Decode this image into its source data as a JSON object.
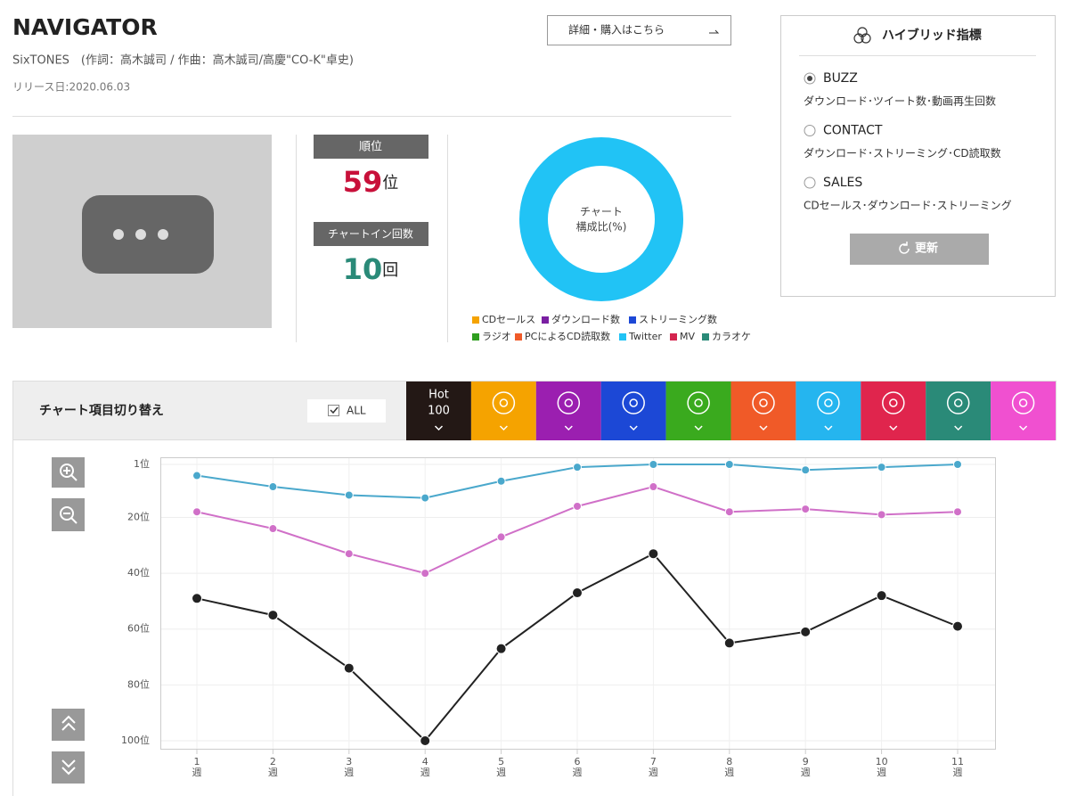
{
  "header": {
    "title": "NAVIGATOR",
    "credits": "SixTONES　(作詞：高木誠司 / 作曲：高木誠司/高慶\"CO-K\"卓史)",
    "release_date": "リリース日:2020.06.03",
    "detail_link": "詳細・購入はこちら"
  },
  "stats": {
    "rank_label": "順位",
    "rank": 59,
    "rank_unit": "位",
    "chart_in_label": "チャートイン回数",
    "chart_in": 10,
    "chart_in_unit": "回"
  },
  "hybrid": {
    "title": "ハイブリッド指標",
    "update_button": "更新",
    "options": [
      {
        "label": "BUZZ",
        "description": "ダウンロード･ツイート数･動画再生回数",
        "selected": true
      },
      {
        "label": "CONTACT",
        "description": "ダウンロード･ストリーミング･CD読取数",
        "selected": false
      },
      {
        "label": "SALES",
        "description": "CDセールス･ダウンロード･ストリーミング",
        "selected": false
      }
    ]
  },
  "tabs": {
    "title": "チャート項目切り替え",
    "all_label": "ALL",
    "all_checked": true,
    "hot_line1": "Hot",
    "hot_line2": "100",
    "colors": [
      "#231815",
      "#f5a300",
      "#9b1fb0",
      "#1c48d6",
      "#3aaa1e",
      "#f05a28",
      "#25b5ef",
      "#e0254d",
      "#2a8a78",
      "#f050d0"
    ]
  },
  "chart_data": [
    {
      "type": "pie",
      "center_text": [
        "チャート",
        "構成比(%)"
      ],
      "categories": [
        "CDセールス",
        "ダウンロード数",
        "ストリーミング数",
        "ラジオ",
        "PCによるCD読取数",
        "Twitter",
        "MV",
        "カラオケ"
      ],
      "colors": [
        "#f5a300",
        "#7a1fa2",
        "#1c48d6",
        "#2f9e1f",
        "#f05a28",
        "#21c3f5",
        "#d4244e",
        "#2a8a78"
      ],
      "values": [
        0,
        0,
        0,
        0,
        0,
        100,
        0,
        0
      ]
    },
    {
      "type": "line",
      "categories": [
        "1週",
        "2週",
        "3週",
        "4週",
        "5週",
        "6週",
        "7週",
        "8週",
        "9週",
        "10週",
        "11週"
      ],
      "series": [
        {
          "color": "#4aa8cc",
          "values": [
            5,
            9,
            12,
            13,
            7,
            2,
            1,
            1,
            3,
            2,
            1
          ]
        },
        {
          "color": "#d070c8",
          "values": [
            18,
            24,
            33,
            40,
            27,
            16,
            9,
            18,
            17,
            19,
            18
          ]
        },
        {
          "color": "#222222",
          "values": [
            49,
            55,
            74,
            100,
            67,
            47,
            33,
            65,
            61,
            48,
            59
          ]
        }
      ],
      "ylim": [
        100,
        1
      ],
      "yticks": [
        {
          "value": 1,
          "label": "1位"
        },
        {
          "value": 20,
          "label": "20位"
        },
        {
          "value": 40,
          "label": "40位"
        },
        {
          "value": 60,
          "label": "60位"
        },
        {
          "value": 80,
          "label": "80位"
        },
        {
          "value": 100,
          "label": "100位"
        }
      ],
      "grid": true
    }
  ]
}
